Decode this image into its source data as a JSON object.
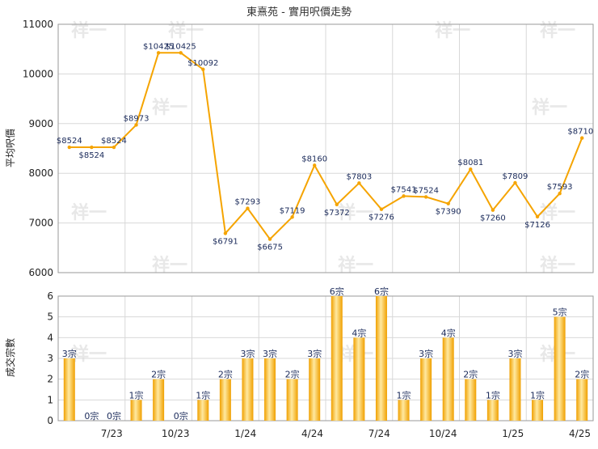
{
  "chart_data": [
    {
      "type": "line",
      "title": "東熹苑 - 實用呎價走勢",
      "ylabel": "平均呎價",
      "ylim": [
        6000,
        11000
      ],
      "yticks": [
        6000,
        7000,
        8000,
        9000,
        10000,
        11000
      ],
      "grid": true,
      "series": [
        {
          "name": "",
          "color": "#f5a400",
          "x": [
            0,
            1,
            2,
            3,
            4,
            5,
            6,
            7,
            8,
            9,
            10,
            11,
            12,
            13,
            14,
            15,
            16,
            17,
            18,
            19,
            20,
            21,
            22,
            23
          ],
          "values": [
            8524,
            8524,
            8524,
            8973,
            10425,
            10425,
            10092,
            6791,
            7293,
            6675,
            7119,
            8160,
            7372,
            7803,
            7276,
            7541,
            7524,
            7390,
            8081,
            7260,
            7809,
            7126,
            7593,
            8710
          ],
          "labels": [
            "$8524",
            "$8524",
            "$8524",
            "$8973",
            "$10425",
            "$10425",
            "$10092",
            "$6791",
            "$7293",
            "$6675",
            "$7119",
            "$8160",
            "$7372",
            "$7803",
            "$7276",
            "$7541",
            "$7524",
            "$7390",
            "$8081",
            "$7260",
            "$7809",
            "$7126",
            "$7593",
            "$8710"
          ]
        }
      ]
    },
    {
      "type": "bar",
      "ylabel": "成交宗數",
      "ylim": [
        0,
        6
      ],
      "yticks": [
        0,
        1,
        2,
        3,
        4,
        5,
        6
      ],
      "grid": true,
      "color": "#f5a400",
      "x": [
        0,
        1,
        2,
        3,
        4,
        5,
        6,
        7,
        8,
        9,
        10,
        11,
        12,
        13,
        14,
        15,
        16,
        17,
        18,
        19,
        20,
        21,
        22,
        23
      ],
      "values": [
        3,
        0,
        0,
        1,
        2,
        0,
        1,
        2,
        3,
        3,
        2,
        3,
        6,
        4,
        6,
        1,
        3,
        4,
        2,
        1,
        3,
        1,
        5,
        2
      ],
      "labels": [
        "3宗",
        "0宗",
        "0宗",
        "1宗",
        "2宗",
        "0宗",
        "1宗",
        "2宗",
        "3宗",
        "3宗",
        "2宗",
        "3宗",
        "6宗",
        "4宗",
        "6宗",
        "1宗",
        "3宗",
        "4宗",
        "2宗",
        "1宗",
        "3宗",
        "1宗",
        "5宗",
        "2宗"
      ],
      "xticks": [
        {
          "label": "7/23",
          "at": 2
        },
        {
          "label": "10/23",
          "at": 5
        },
        {
          "label": "1/24",
          "at": 8
        },
        {
          "label": "4/24",
          "at": 11
        },
        {
          "label": "7/24",
          "at": 14
        },
        {
          "label": "10/24",
          "at": 17
        },
        {
          "label": "1/25",
          "at": 20
        },
        {
          "label": "4/25",
          "at": 23
        }
      ]
    }
  ],
  "watermark": "祥一"
}
